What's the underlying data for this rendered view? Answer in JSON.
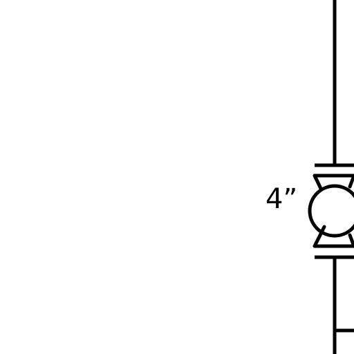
{
  "diagram": {
    "valve": {
      "size_label": "4”"
    },
    "colors": {
      "line": "#000000",
      "background": "#ffffff"
    }
  }
}
